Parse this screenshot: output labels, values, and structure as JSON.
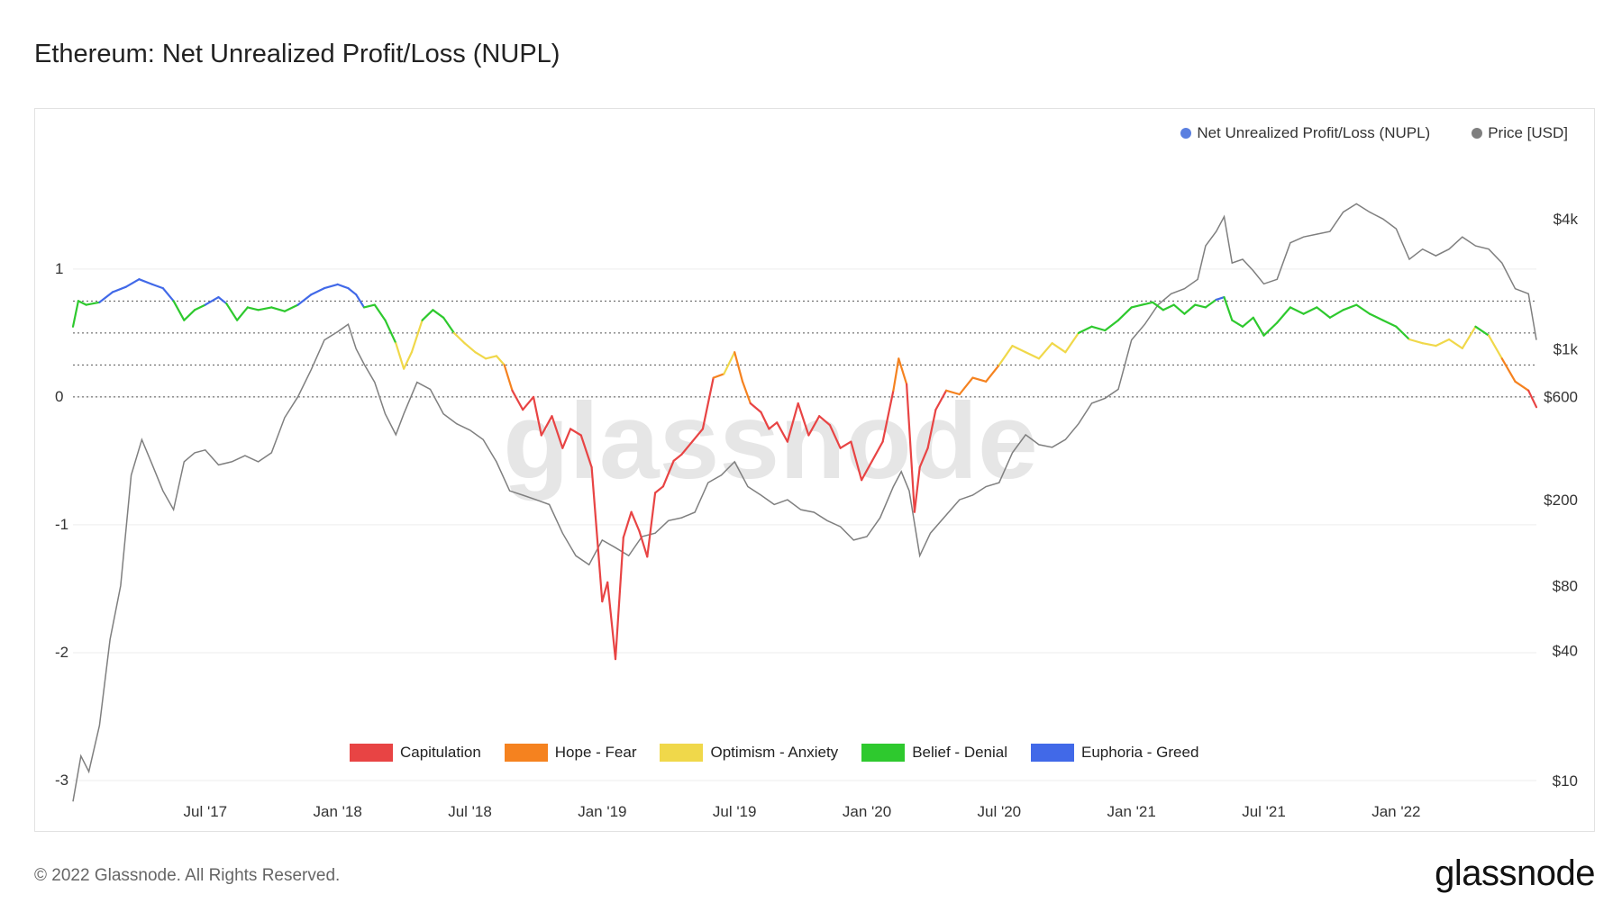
{
  "title": "Ethereum: Net Unrealized Profit/Loss (NUPL)",
  "watermark": "glassnode",
  "footer": {
    "copyright": "© 2022 Glassnode. All Rights Reserved.",
    "logo": "glassnode"
  },
  "legend_top": [
    {
      "label": "Net Unrealized Profit/Loss (NUPL)",
      "color": "#5a7fe0"
    },
    {
      "label": "Price [USD]",
      "color": "#7f7f7f"
    }
  ],
  "chart_data": {
    "type": "line",
    "title": "Ethereum: Net Unrealized Profit/Loss (NUPL)",
    "x_start": 2017.0,
    "x_end": 2022.53,
    "x_ticks": [
      {
        "label": "Jul '17",
        "t": 2017.5
      },
      {
        "label": "Jan '18",
        "t": 2018.0
      },
      {
        "label": "Jul '18",
        "t": 2018.5
      },
      {
        "label": "Jan '19",
        "t": 2019.0
      },
      {
        "label": "Jul '19",
        "t": 2019.5
      },
      {
        "label": "Jan '20",
        "t": 2020.0
      },
      {
        "label": "Jul '20",
        "t": 2020.5
      },
      {
        "label": "Jan '21",
        "t": 2021.0
      },
      {
        "label": "Jul '21",
        "t": 2021.5
      },
      {
        "label": "Jan '22",
        "t": 2022.0
      }
    ],
    "y_left": {
      "min": -3,
      "max": 1.9,
      "ticks": [
        1,
        0,
        -1,
        -2,
        -3
      ],
      "tick_labels": [
        "1",
        "0",
        "-1",
        "-2",
        "-3"
      ]
    },
    "y_right": {
      "scale": "log",
      "min": 10,
      "max": 8000,
      "ticks": [
        4000,
        1000,
        600,
        200,
        80,
        40,
        10
      ],
      "tick_labels": [
        "$4k",
        "$1k",
        "$600",
        "$200",
        "$80",
        "$40",
        "$10"
      ]
    },
    "reference_lines": [
      0.75,
      0.5,
      0.25,
      0
    ],
    "zones": [
      {
        "name": "Capitulation",
        "color": "#e84444",
        "below": 0
      },
      {
        "name": "Hope - Fear",
        "color": "#f5821f",
        "below": 0.25
      },
      {
        "name": "Optimism - Anxiety",
        "color": "#f0d84a",
        "below": 0.5
      },
      {
        "name": "Belief - Denial",
        "color": "#2ec92e",
        "below": 0.75
      },
      {
        "name": "Euphoria - Greed",
        "color": "#4169e8",
        "below": 99
      }
    ],
    "series": [
      {
        "name": "Net Unrealized Profit/Loss (NUPL)",
        "axis": "left",
        "points": [
          [
            2017.0,
            0.55
          ],
          [
            2017.02,
            0.75
          ],
          [
            2017.05,
            0.72
          ],
          [
            2017.1,
            0.74
          ],
          [
            2017.15,
            0.82
          ],
          [
            2017.2,
            0.86
          ],
          [
            2017.25,
            0.92
          ],
          [
            2017.3,
            0.88
          ],
          [
            2017.34,
            0.85
          ],
          [
            2017.38,
            0.75
          ],
          [
            2017.42,
            0.6
          ],
          [
            2017.46,
            0.68
          ],
          [
            2017.5,
            0.72
          ],
          [
            2017.55,
            0.78
          ],
          [
            2017.58,
            0.73
          ],
          [
            2017.62,
            0.6
          ],
          [
            2017.66,
            0.7
          ],
          [
            2017.7,
            0.68
          ],
          [
            2017.75,
            0.7
          ],
          [
            2017.8,
            0.67
          ],
          [
            2017.85,
            0.72
          ],
          [
            2017.9,
            0.8
          ],
          [
            2017.95,
            0.85
          ],
          [
            2018.0,
            0.88
          ],
          [
            2018.04,
            0.85
          ],
          [
            2018.07,
            0.8
          ],
          [
            2018.1,
            0.7
          ],
          [
            2018.14,
            0.72
          ],
          [
            2018.18,
            0.6
          ],
          [
            2018.22,
            0.42
          ],
          [
            2018.25,
            0.22
          ],
          [
            2018.28,
            0.35
          ],
          [
            2018.32,
            0.6
          ],
          [
            2018.36,
            0.68
          ],
          [
            2018.4,
            0.62
          ],
          [
            2018.44,
            0.5
          ],
          [
            2018.48,
            0.42
          ],
          [
            2018.52,
            0.35
          ],
          [
            2018.56,
            0.3
          ],
          [
            2018.6,
            0.32
          ],
          [
            2018.63,
            0.25
          ],
          [
            2018.66,
            0.05
          ],
          [
            2018.7,
            -0.1
          ],
          [
            2018.74,
            0.0
          ],
          [
            2018.77,
            -0.3
          ],
          [
            2018.81,
            -0.15
          ],
          [
            2018.85,
            -0.4
          ],
          [
            2018.88,
            -0.25
          ],
          [
            2018.92,
            -0.3
          ],
          [
            2018.96,
            -0.55
          ],
          [
            2019.0,
            -1.6
          ],
          [
            2019.02,
            -1.45
          ],
          [
            2019.05,
            -2.05
          ],
          [
            2019.08,
            -1.1
          ],
          [
            2019.11,
            -0.9
          ],
          [
            2019.14,
            -1.05
          ],
          [
            2019.17,
            -1.25
          ],
          [
            2019.2,
            -0.75
          ],
          [
            2019.23,
            -0.7
          ],
          [
            2019.27,
            -0.5
          ],
          [
            2019.3,
            -0.45
          ],
          [
            2019.34,
            -0.35
          ],
          [
            2019.38,
            -0.25
          ],
          [
            2019.42,
            0.15
          ],
          [
            2019.46,
            0.18
          ],
          [
            2019.5,
            0.35
          ],
          [
            2019.53,
            0.12
          ],
          [
            2019.56,
            -0.05
          ],
          [
            2019.6,
            -0.12
          ],
          [
            2019.63,
            -0.25
          ],
          [
            2019.66,
            -0.2
          ],
          [
            2019.7,
            -0.35
          ],
          [
            2019.74,
            -0.05
          ],
          [
            2019.78,
            -0.3
          ],
          [
            2019.82,
            -0.15
          ],
          [
            2019.86,
            -0.22
          ],
          [
            2019.9,
            -0.4
          ],
          [
            2019.94,
            -0.35
          ],
          [
            2019.98,
            -0.65
          ],
          [
            2020.02,
            -0.5
          ],
          [
            2020.06,
            -0.35
          ],
          [
            2020.1,
            0.05
          ],
          [
            2020.12,
            0.3
          ],
          [
            2020.15,
            0.1
          ],
          [
            2020.18,
            -0.9
          ],
          [
            2020.2,
            -0.55
          ],
          [
            2020.23,
            -0.4
          ],
          [
            2020.26,
            -0.1
          ],
          [
            2020.3,
            0.05
          ],
          [
            2020.35,
            0.02
          ],
          [
            2020.4,
            0.15
          ],
          [
            2020.45,
            0.12
          ],
          [
            2020.5,
            0.25
          ],
          [
            2020.55,
            0.4
          ],
          [
            2020.6,
            0.35
          ],
          [
            2020.65,
            0.3
          ],
          [
            2020.7,
            0.42
          ],
          [
            2020.75,
            0.35
          ],
          [
            2020.8,
            0.5
          ],
          [
            2020.85,
            0.55
          ],
          [
            2020.9,
            0.52
          ],
          [
            2020.95,
            0.6
          ],
          [
            2021.0,
            0.7
          ],
          [
            2021.04,
            0.72
          ],
          [
            2021.08,
            0.74
          ],
          [
            2021.12,
            0.68
          ],
          [
            2021.16,
            0.72
          ],
          [
            2021.2,
            0.65
          ],
          [
            2021.24,
            0.72
          ],
          [
            2021.28,
            0.7
          ],
          [
            2021.32,
            0.76
          ],
          [
            2021.35,
            0.78
          ],
          [
            2021.38,
            0.6
          ],
          [
            2021.42,
            0.55
          ],
          [
            2021.46,
            0.62
          ],
          [
            2021.5,
            0.48
          ],
          [
            2021.55,
            0.58
          ],
          [
            2021.6,
            0.7
          ],
          [
            2021.65,
            0.65
          ],
          [
            2021.7,
            0.7
          ],
          [
            2021.75,
            0.62
          ],
          [
            2021.8,
            0.68
          ],
          [
            2021.85,
            0.72
          ],
          [
            2021.9,
            0.65
          ],
          [
            2021.95,
            0.6
          ],
          [
            2022.0,
            0.55
          ],
          [
            2022.05,
            0.45
          ],
          [
            2022.1,
            0.42
          ],
          [
            2022.15,
            0.4
          ],
          [
            2022.2,
            0.45
          ],
          [
            2022.25,
            0.38
          ],
          [
            2022.3,
            0.55
          ],
          [
            2022.35,
            0.48
          ],
          [
            2022.4,
            0.3
          ],
          [
            2022.45,
            0.12
          ],
          [
            2022.5,
            0.05
          ],
          [
            2022.53,
            -0.08
          ]
        ]
      },
      {
        "name": "Price [USD]",
        "axis": "right",
        "color": "#7f7f7f",
        "points": [
          [
            2017.0,
            8
          ],
          [
            2017.03,
            13
          ],
          [
            2017.06,
            11
          ],
          [
            2017.1,
            18
          ],
          [
            2017.14,
            45
          ],
          [
            2017.18,
            80
          ],
          [
            2017.22,
            260
          ],
          [
            2017.26,
            380
          ],
          [
            2017.3,
            290
          ],
          [
            2017.34,
            220
          ],
          [
            2017.38,
            180
          ],
          [
            2017.42,
            300
          ],
          [
            2017.46,
            330
          ],
          [
            2017.5,
            340
          ],
          [
            2017.55,
            290
          ],
          [
            2017.6,
            300
          ],
          [
            2017.65,
            320
          ],
          [
            2017.7,
            300
          ],
          [
            2017.75,
            330
          ],
          [
            2017.8,
            480
          ],
          [
            2017.85,
            600
          ],
          [
            2017.9,
            800
          ],
          [
            2017.95,
            1100
          ],
          [
            2018.0,
            1200
          ],
          [
            2018.04,
            1300
          ],
          [
            2018.07,
            1000
          ],
          [
            2018.1,
            850
          ],
          [
            2018.14,
            700
          ],
          [
            2018.18,
            500
          ],
          [
            2018.22,
            400
          ],
          [
            2018.25,
            500
          ],
          [
            2018.3,
            700
          ],
          [
            2018.35,
            650
          ],
          [
            2018.4,
            500
          ],
          [
            2018.45,
            450
          ],
          [
            2018.5,
            420
          ],
          [
            2018.55,
            380
          ],
          [
            2018.6,
            300
          ],
          [
            2018.65,
            220
          ],
          [
            2018.7,
            210
          ],
          [
            2018.75,
            200
          ],
          [
            2018.8,
            190
          ],
          [
            2018.85,
            140
          ],
          [
            2018.9,
            110
          ],
          [
            2018.95,
            100
          ],
          [
            2019.0,
            130
          ],
          [
            2019.05,
            120
          ],
          [
            2019.1,
            110
          ],
          [
            2019.15,
            135
          ],
          [
            2019.2,
            140
          ],
          [
            2019.25,
            160
          ],
          [
            2019.3,
            165
          ],
          [
            2019.35,
            175
          ],
          [
            2019.4,
            240
          ],
          [
            2019.45,
            260
          ],
          [
            2019.5,
            300
          ],
          [
            2019.55,
            230
          ],
          [
            2019.6,
            210
          ],
          [
            2019.65,
            190
          ],
          [
            2019.7,
            200
          ],
          [
            2019.75,
            180
          ],
          [
            2019.8,
            175
          ],
          [
            2019.85,
            160
          ],
          [
            2019.9,
            150
          ],
          [
            2019.95,
            130
          ],
          [
            2020.0,
            135
          ],
          [
            2020.05,
            165
          ],
          [
            2020.1,
            230
          ],
          [
            2020.13,
            270
          ],
          [
            2020.16,
            220
          ],
          [
            2020.2,
            110
          ],
          [
            2020.24,
            140
          ],
          [
            2020.3,
            170
          ],
          [
            2020.35,
            200
          ],
          [
            2020.4,
            210
          ],
          [
            2020.45,
            230
          ],
          [
            2020.5,
            240
          ],
          [
            2020.55,
            330
          ],
          [
            2020.6,
            400
          ],
          [
            2020.65,
            360
          ],
          [
            2020.7,
            350
          ],
          [
            2020.75,
            380
          ],
          [
            2020.8,
            450
          ],
          [
            2020.85,
            560
          ],
          [
            2020.9,
            590
          ],
          [
            2020.95,
            650
          ],
          [
            2021.0,
            1100
          ],
          [
            2021.05,
            1300
          ],
          [
            2021.1,
            1600
          ],
          [
            2021.15,
            1800
          ],
          [
            2021.2,
            1900
          ],
          [
            2021.25,
            2100
          ],
          [
            2021.28,
            3000
          ],
          [
            2021.32,
            3500
          ],
          [
            2021.35,
            4100
          ],
          [
            2021.38,
            2500
          ],
          [
            2021.42,
            2600
          ],
          [
            2021.46,
            2300
          ],
          [
            2021.5,
            2000
          ],
          [
            2021.55,
            2100
          ],
          [
            2021.6,
            3100
          ],
          [
            2021.65,
            3300
          ],
          [
            2021.7,
            3400
          ],
          [
            2021.75,
            3500
          ],
          [
            2021.8,
            4300
          ],
          [
            2021.85,
            4700
          ],
          [
            2021.9,
            4300
          ],
          [
            2021.95,
            4000
          ],
          [
            2022.0,
            3600
          ],
          [
            2022.05,
            2600
          ],
          [
            2022.1,
            2900
          ],
          [
            2022.15,
            2700
          ],
          [
            2022.2,
            2900
          ],
          [
            2022.25,
            3300
          ],
          [
            2022.3,
            3000
          ],
          [
            2022.35,
            2900
          ],
          [
            2022.4,
            2500
          ],
          [
            2022.45,
            1900
          ],
          [
            2022.5,
            1800
          ],
          [
            2022.53,
            1100
          ]
        ]
      }
    ]
  }
}
